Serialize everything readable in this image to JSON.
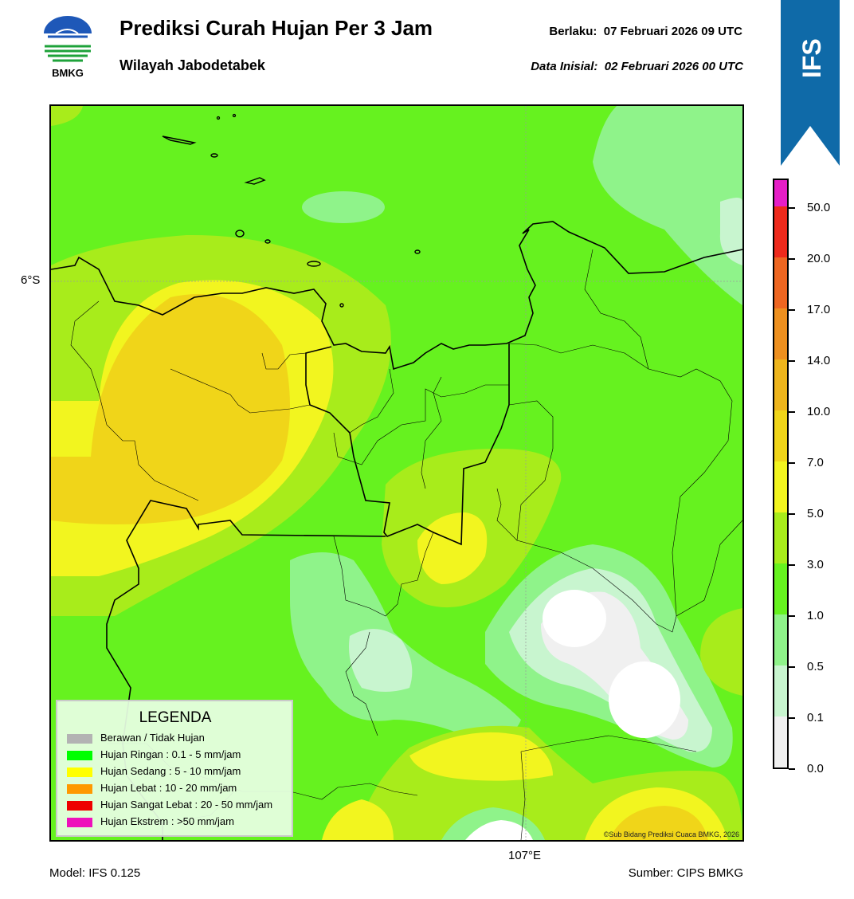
{
  "header": {
    "logo_text": "BMKG",
    "title": "Prediksi Curah Hujan Per 3 Jam",
    "subtitle": "Wilayah Jabodetabek",
    "valid_label": "Berlaku:",
    "valid_time": "07 Februari 2026 09 UTC",
    "init_label": "Data Inisial:",
    "init_time": "02 Februari 2026 00 UTC",
    "ribbon": "IFS"
  },
  "map": {
    "lat_label": "6°S",
    "lon_label": "107°E",
    "copyright": "©Sub Bidang Prediksi Cuaca BMKG, 2026"
  },
  "legend": {
    "title": "LEGENDA",
    "items": [
      {
        "label": "Berawan / Tidak Hujan",
        "color": "#b3b3b3"
      },
      {
        "label": "Hujan Ringan : 0.1 - 5 mm/jam",
        "color": "#00ff00"
      },
      {
        "label": "Hujan Sedang : 5 - 10 mm/jam",
        "color": "#ffff00"
      },
      {
        "label": "Hujan Lebat : 10 - 20 mm/jam",
        "color": "#ff9900"
      },
      {
        "label": "Hujan Sangat Lebat : 20 - 50 mm/jam",
        "color": "#ee0000"
      },
      {
        "label": "Hujan Ekstrem : >50 mm/jam",
        "color": "#ee11bb"
      }
    ]
  },
  "colorbar": {
    "ticks": [
      "0.0",
      "0.1",
      "0.5",
      "1.0",
      "3.0",
      "5.0",
      "7.0",
      "10.0",
      "14.0",
      "17.0",
      "20.0",
      "50.0"
    ],
    "colors": [
      "#f0f0f0",
      "#c8f5cf",
      "#8ff38a",
      "#66f21f",
      "#a8ec1b",
      "#f2f51f",
      "#f0d519",
      "#eeb51c",
      "#ee901f",
      "#ee6621",
      "#ee2a1c",
      "#e61ec6"
    ]
  },
  "footer": {
    "model": "Model: IFS 0.125",
    "source": "Sumber: CIPS BMKG"
  }
}
